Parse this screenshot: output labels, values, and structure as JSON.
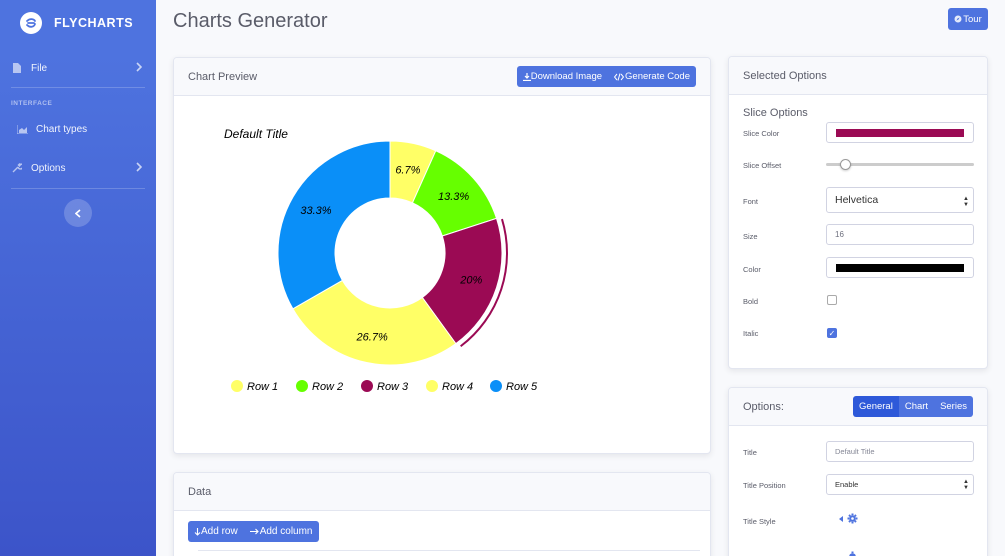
{
  "sidebar": {
    "brand": "FLYCHARTS",
    "items": [
      {
        "label": "File",
        "icon": "file-icon"
      },
      {
        "label": "Chart types",
        "icon": "chart-area-icon"
      },
      {
        "label": "Options",
        "icon": "wrench-icon"
      }
    ],
    "section_heading": "INTERFACE"
  },
  "header": {
    "title": "Charts Generator",
    "tour_label": "Tour"
  },
  "preview": {
    "title": "Chart Preview",
    "download_label": "Download Image",
    "generate_label": "Generate Code"
  },
  "data_card": {
    "title": "Data",
    "add_row_label": "Add row",
    "add_column_label": "Add column"
  },
  "selected": {
    "title": "Selected Options",
    "subheading": "Slice Options",
    "slice_color_label": "Slice Color",
    "slice_color": "#9b0a54",
    "slice_offset_label": "Slice Offset",
    "slice_offset_value": 0.1,
    "font_label": "Font",
    "font_value": "Helvetica",
    "size_label": "Size",
    "size_value": "16",
    "color_label": "Color",
    "color_value": "#000000",
    "bold_label": "Bold",
    "bold_checked": false,
    "italic_label": "Italic",
    "italic_checked": true
  },
  "options": {
    "title": "Options:",
    "tabs": [
      "General",
      "Chart",
      "Series"
    ],
    "active_tab": "General",
    "title_label": "Title",
    "title_placeholder": "Default Title",
    "title_position_label": "Title Position",
    "title_position_value": "Enable",
    "title_style_label": "Title Style"
  },
  "colors": {
    "accent": "#4e73df"
  },
  "chart_data": {
    "type": "pie",
    "title": "Default Title",
    "categories": [
      "Row 1",
      "Row 2",
      "Row 3",
      "Row 4",
      "Row 5"
    ],
    "values": [
      6.7,
      13.3,
      20,
      26.7,
      33.3
    ],
    "labels": [
      "6.7%",
      "13.3%",
      "20%",
      "26.7%",
      "33.3%"
    ],
    "colors": [
      "#ffff66",
      "#66ff00",
      "#9b0a54",
      "#ffff66",
      "#0a8ff8"
    ],
    "donut": true,
    "legend": "bottom"
  }
}
